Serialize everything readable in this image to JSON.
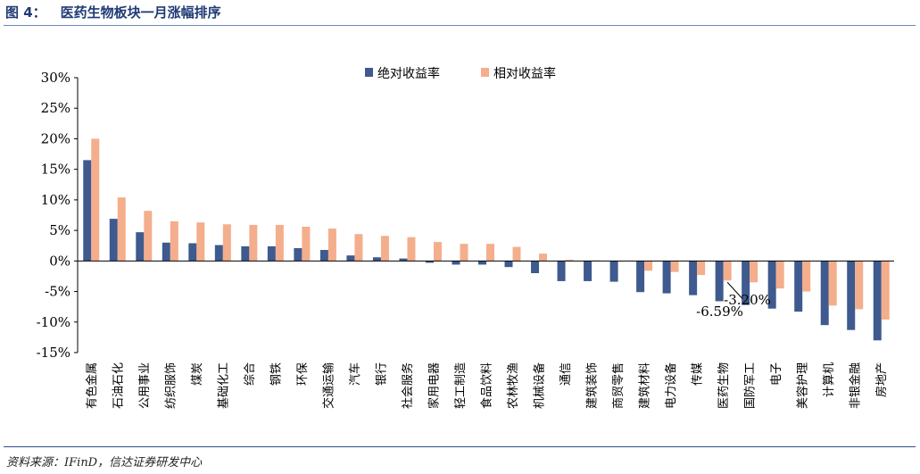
{
  "figure": {
    "label": "图 4：",
    "title": "医药生物板块一月涨幅排序",
    "source": "资料来源：IFinD，信达证券研发中心"
  },
  "colors": {
    "absolute": "#3e5a8e",
    "relative": "#f4ae8c",
    "rule": "#2e4f8c",
    "title": "#1f3a75"
  },
  "chart_data": {
    "type": "bar",
    "title": "",
    "xlabel": "",
    "ylabel": "",
    "ylim": [
      -15,
      30
    ],
    "yticks": [
      "30%",
      "25%",
      "20%",
      "15%",
      "10%",
      "5%",
      "0%",
      "-5%",
      "-10%",
      "-15%"
    ],
    "legend_position": "top-center",
    "grid": false,
    "categories": [
      "有色金属",
      "石油石化",
      "公用事业",
      "纺织服饰",
      "煤炭",
      "基础化工",
      "综合",
      "钢铁",
      "环保",
      "交通运输",
      "汽车",
      "银行",
      "社会服务",
      "家用电器",
      "轻工制造",
      "食品饮料",
      "农林牧渔",
      "机械设备",
      "通信",
      "建筑装饰",
      "商贸零售",
      "建筑材料",
      "电力设备",
      "传媒",
      "医药生物",
      "国防军工",
      "电子",
      "美容护理",
      "计算机",
      "非银金融",
      "房地产"
    ],
    "series": [
      {
        "name": "绝对收益率",
        "values": [
          16.5,
          6.9,
          4.7,
          3.0,
          2.9,
          2.6,
          2.4,
          2.4,
          2.1,
          1.8,
          0.9,
          0.6,
          0.4,
          -0.3,
          -0.6,
          -0.6,
          -1.0,
          -2.0,
          -3.3,
          -3.3,
          -3.4,
          -5.1,
          -5.3,
          -5.6,
          -6.59,
          -7.2,
          -7.8,
          -8.3,
          -10.5,
          -11.3,
          -13.0
        ]
      },
      {
        "name": "相对收益率",
        "values": [
          20.0,
          10.4,
          8.2,
          6.5,
          6.3,
          6.0,
          5.9,
          5.9,
          5.6,
          5.3,
          4.4,
          4.1,
          3.9,
          3.1,
          2.8,
          2.8,
          2.3,
          1.2,
          0.2,
          0.1,
          0.0,
          -1.6,
          -1.8,
          -2.3,
          -3.2,
          -3.5,
          -4.5,
          -5.0,
          -7.3,
          -7.9,
          -9.6
        ]
      }
    ],
    "annotations": [
      {
        "text": "-3.20%",
        "category": "医药生物",
        "series": "相对收益率"
      },
      {
        "text": "-6.59%",
        "category": "医药生物",
        "series": "绝对收益率"
      }
    ]
  }
}
